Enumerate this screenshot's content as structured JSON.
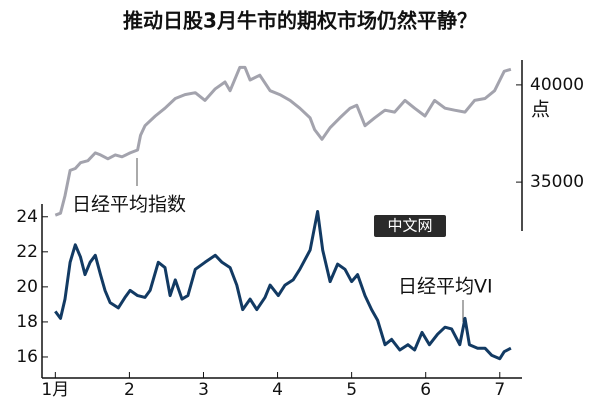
{
  "chart_data": {
    "type": "line",
    "title": "推动日股3月牛市的期权市场仍然平静？",
    "y2label": "点",
    "watermark": "中文网",
    "xlim": [
      0.82,
      7.3
    ],
    "xticks": [
      {
        "value": 1,
        "label": "1月"
      },
      2,
      3,
      4,
      5,
      6,
      7
    ],
    "ylim": [
      14.8,
      24.5
    ],
    "yticks": [
      16,
      18,
      20,
      22,
      24
    ],
    "y2lim": [
      33000,
      42000
    ],
    "y2ticks": [
      35000,
      40000
    ],
    "series": [
      {
        "name": "日经平均指数",
        "color": "#a3a3ad",
        "axis": "y2",
        "x": [
          1.0,
          1.07,
          1.13,
          1.2,
          1.27,
          1.34,
          1.44,
          1.54,
          1.61,
          1.71,
          1.81,
          1.9,
          2.01,
          2.11,
          2.15,
          2.21,
          2.35,
          2.48,
          2.62,
          2.75,
          2.89,
          3.02,
          3.16,
          3.29,
          3.36,
          3.49,
          3.56,
          3.63,
          3.76,
          3.9,
          4.03,
          4.17,
          4.3,
          4.44,
          4.5,
          4.6,
          4.71,
          4.84,
          4.98,
          5.07,
          5.18,
          5.31,
          5.45,
          5.58,
          5.72,
          5.85,
          5.99,
          6.12,
          6.26,
          6.39,
          6.53,
          6.66,
          6.8,
          6.93,
          7.06,
          7.15
        ],
        "values": [
          33300,
          33400,
          34300,
          35600,
          35700,
          36000,
          36100,
          36500,
          36400,
          36200,
          36400,
          36300,
          36500,
          36650,
          37400,
          37900,
          38400,
          38800,
          39300,
          39500,
          39600,
          39200,
          39800,
          40150,
          39700,
          40900,
          40900,
          40250,
          40500,
          39700,
          39500,
          39200,
          38800,
          38300,
          37700,
          37200,
          37800,
          38300,
          38800,
          38950,
          37900,
          38300,
          38700,
          38600,
          39200,
          38800,
          38400,
          39200,
          38800,
          38700,
          38600,
          39200,
          39300,
          39700,
          40700,
          40800
        ]
      },
      {
        "name": "日经平均VI",
        "color": "#123a63",
        "axis": "y",
        "x": [
          1.0,
          1.07,
          1.13,
          1.2,
          1.27,
          1.34,
          1.4,
          1.47,
          1.54,
          1.61,
          1.67,
          1.74,
          1.85,
          1.94,
          2.01,
          2.11,
          2.21,
          2.28,
          2.39,
          2.48,
          2.55,
          2.62,
          2.71,
          2.79,
          2.89,
          3.02,
          3.16,
          3.25,
          3.36,
          3.45,
          3.53,
          3.63,
          3.72,
          3.83,
          3.9,
          4.01,
          4.1,
          4.21,
          4.3,
          4.44,
          4.54,
          4.61,
          4.71,
          4.81,
          4.91,
          5.0,
          5.08,
          5.18,
          5.27,
          5.35,
          5.45,
          5.54,
          5.65,
          5.76,
          5.85,
          5.95,
          6.05,
          6.16,
          6.26,
          6.35,
          6.46,
          6.53,
          6.59,
          6.7,
          6.8,
          6.89,
          7.0,
          7.06,
          7.15
        ],
        "values": [
          18.6,
          18.2,
          19.3,
          21.4,
          22.4,
          21.7,
          20.7,
          21.4,
          21.8,
          20.7,
          19.8,
          19.1,
          18.8,
          19.4,
          19.8,
          19.5,
          19.4,
          19.8,
          21.4,
          21.1,
          19.5,
          20.4,
          19.3,
          19.5,
          21.0,
          21.4,
          21.8,
          21.4,
          21.1,
          20.1,
          18.7,
          19.3,
          18.7,
          19.4,
          20.1,
          19.5,
          20.1,
          20.4,
          21.0,
          22.1,
          24.3,
          22.1,
          20.3,
          21.3,
          21.0,
          20.3,
          20.7,
          19.5,
          18.7,
          18.1,
          16.7,
          17.0,
          16.4,
          16.7,
          16.4,
          17.4,
          16.7,
          17.3,
          17.7,
          17.6,
          16.7,
          18.2,
          16.7,
          16.5,
          16.5,
          16.1,
          15.9,
          16.3,
          16.5
        ]
      }
    ]
  }
}
